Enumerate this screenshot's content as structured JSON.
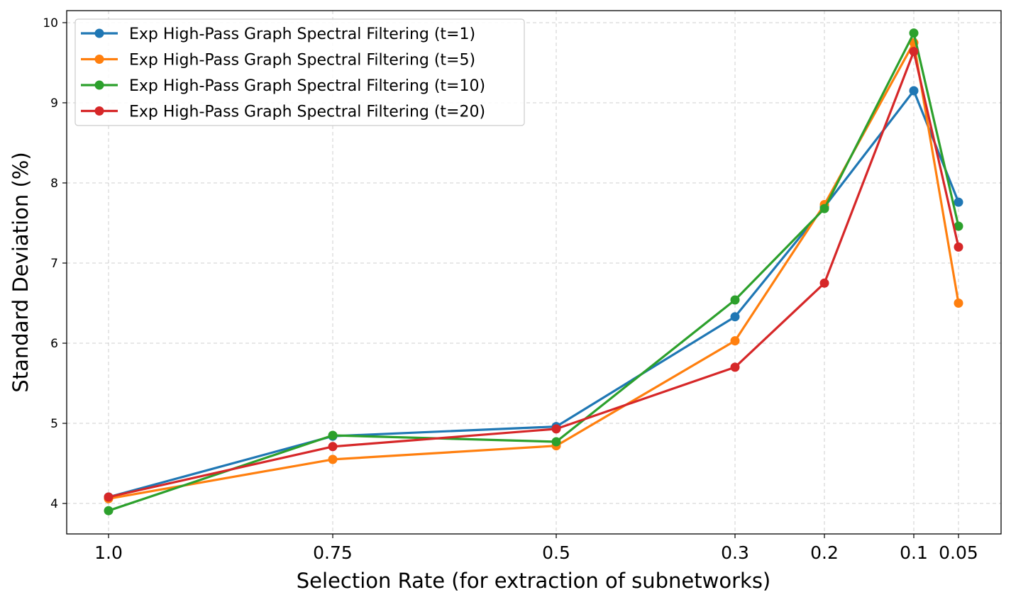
{
  "chart_data": {
    "type": "line",
    "title": "",
    "xlabel": "Selection Rate (for extraction of subnetworks)",
    "ylabel": "Standard Deviation (%)",
    "x": [
      1.0,
      0.75,
      0.5,
      0.3,
      0.2,
      0.1,
      0.05
    ],
    "x_tick_labels": [
      "1.0",
      "0.75",
      "0.5",
      "0.3",
      "0.2",
      "0.1",
      "0.05"
    ],
    "y_ticks": [
      4,
      5,
      6,
      7,
      8,
      9,
      10
    ],
    "y_tick_labels": [
      "4",
      "5",
      "6",
      "7",
      "8",
      "9",
      "10"
    ],
    "ylim": [
      3.62,
      10.15
    ],
    "grid": true,
    "legend_position": "upper-left",
    "series": [
      {
        "name": "Exp High-Pass Graph Spectral Filtering (t=1)",
        "color": "#1f77b4",
        "values": [
          4.08,
          4.84,
          4.96,
          6.33,
          7.7,
          9.15,
          7.76
        ]
      },
      {
        "name": "Exp High-Pass Graph Spectral Filtering (t=5)",
        "color": "#ff7f0e",
        "values": [
          4.06,
          4.55,
          4.72,
          6.03,
          7.73,
          9.75,
          6.5
        ]
      },
      {
        "name": "Exp High-Pass Graph Spectral Filtering (t=10)",
        "color": "#2ca02c",
        "values": [
          3.91,
          4.85,
          4.77,
          6.54,
          7.68,
          9.87,
          7.46
        ]
      },
      {
        "name": "Exp High-Pass Graph Spectral Filtering (t=20)",
        "color": "#d62728",
        "values": [
          4.08,
          4.71,
          4.93,
          5.7,
          6.75,
          9.64,
          7.2
        ]
      }
    ]
  }
}
